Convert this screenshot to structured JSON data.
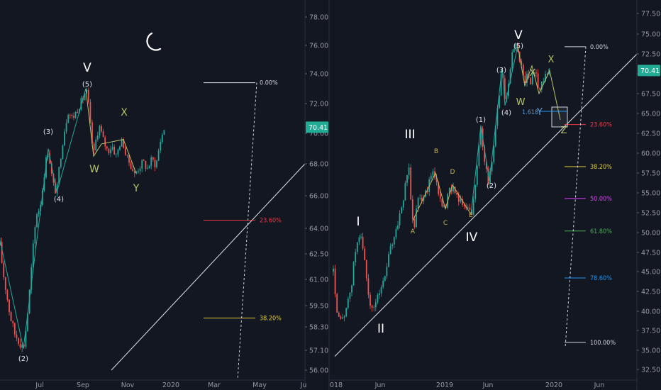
{
  "chart_data": [
    {
      "type": "candlestick",
      "title": "",
      "x_ticks": [
        "Jul",
        "Sep",
        "Nov",
        "2020",
        "Mar",
        "May",
        "Ju"
      ],
      "y_ticks": [
        "78.00",
        "76.00",
        "74.00",
        "72.00",
        "70.00",
        "68.00",
        "66.00",
        "64.00",
        "62.50",
        "61.00",
        "59.50",
        "58.30",
        "57.10",
        "56.00"
      ],
      "last_price": "70.41",
      "ylim": [
        56.0,
        78.0
      ],
      "price_path": [
        [
          0,
          63.0
        ],
        [
          4,
          61.5
        ],
        [
          8,
          60.5
        ],
        [
          14,
          59.0
        ],
        [
          20,
          58.0
        ],
        [
          27,
          57.6
        ],
        [
          33,
          57.2
        ],
        [
          36,
          58.0
        ],
        [
          40,
          59.5
        ],
        [
          44,
          61.5
        ],
        [
          48,
          63.5
        ],
        [
          52,
          65.0
        ],
        [
          56,
          65.2
        ],
        [
          60,
          66.5
        ],
        [
          64,
          68.0
        ],
        [
          68,
          69.0
        ],
        [
          72,
          67.5
        ],
        [
          76,
          66.5
        ],
        [
          80,
          66.2
        ],
        [
          84,
          68.0
        ],
        [
          90,
          70.0
        ],
        [
          96,
          71.5
        ],
        [
          102,
          71.0
        ],
        [
          108,
          71.5
        ],
        [
          113,
          72.0
        ],
        [
          118,
          72.4
        ],
        [
          121,
          73.0
        ],
        [
          124,
          72.3
        ],
        [
          128,
          70.2
        ],
        [
          132,
          68.5
        ],
        [
          136,
          69.8
        ],
        [
          140,
          70.5
        ],
        [
          146,
          69.5
        ],
        [
          152,
          68.8
        ],
        [
          158,
          69.2
        ],
        [
          164,
          68.5
        ],
        [
          170,
          69.5
        ],
        [
          174,
          69.3
        ],
        [
          178,
          68.4
        ],
        [
          184,
          68.0
        ],
        [
          190,
          67.3
        ],
        [
          196,
          67.8
        ],
        [
          202,
          68.1
        ],
        [
          208,
          67.7
        ],
        [
          214,
          68.3
        ],
        [
          220,
          67.9
        ],
        [
          226,
          69.5
        ],
        [
          232,
          70.4
        ]
      ],
      "waves": [
        {
          "label": "(2)",
          "x": 33,
          "y": 57.2
        },
        {
          "label": "(3)",
          "x": 68,
          "y": 69.0
        },
        {
          "label": "(4)",
          "x": 80,
          "y": 66.2
        },
        {
          "label": "(5)",
          "x": 121,
          "y": 73.0
        },
        {
          "label": "V",
          "x": 121,
          "y": 73.0
        },
        {
          "label": "W",
          "x": 132,
          "y": 68.3
        },
        {
          "label": "X",
          "x": 174,
          "y": 69.6
        },
        {
          "label": "Y",
          "x": 190,
          "y": 67.2
        }
      ],
      "trendline": [
        [
          157,
          56.0
        ],
        [
          430,
          68.0
        ]
      ],
      "fib_levels": [
        {
          "label": "0.00%",
          "price": 73.4,
          "color": "#d1d4dc"
        },
        {
          "label": "23.60%",
          "price": 64.5,
          "color": "#f23645"
        },
        {
          "label": "38.20%",
          "price": 58.8,
          "color": "#e5d037"
        }
      ],
      "icon": "moon-icon"
    },
    {
      "type": "candlestick",
      "title": "",
      "x_ticks": [
        "018",
        "Jun",
        "2019",
        "Jun",
        "2020",
        "Jun"
      ],
      "y_ticks": [
        "77.50",
        "75.00",
        "72.50",
        "70.00",
        "67.50",
        "65.00",
        "62.50",
        "60.00",
        "57.50",
        "55.00",
        "52.50",
        "50.00",
        "47.50",
        "45.00",
        "42.50",
        "40.00",
        "37.50",
        "35.00",
        "32.50"
      ],
      "last_price": "70.41",
      "ylim": [
        32.5,
        77.5
      ],
      "price_path": [
        [
          470,
          45.0
        ],
        [
          476,
          39.0
        ],
        [
          482,
          38.5
        ],
        [
          488,
          40.5
        ],
        [
          494,
          42.0
        ],
        [
          500,
          47.0
        ],
        [
          506,
          50.0
        ],
        [
          512,
          48.0
        ],
        [
          518,
          43.0
        ],
        [
          524,
          40.0
        ],
        [
          530,
          41.0
        ],
        [
          536,
          43.0
        ],
        [
          542,
          44.0
        ],
        [
          548,
          47.0
        ],
        [
          554,
          49.0
        ],
        [
          560,
          51.0
        ],
        [
          566,
          53.0
        ],
        [
          572,
          56.0
        ],
        [
          576,
          58.8
        ],
        [
          580,
          53.0
        ],
        [
          584,
          51.0
        ],
        [
          590,
          55.0
        ],
        [
          596,
          54.0
        ],
        [
          602,
          55.5
        ],
        [
          608,
          57.0
        ],
        [
          614,
          57.5
        ],
        [
          618,
          55.0
        ],
        [
          622,
          54.0
        ],
        [
          628,
          53.0
        ],
        [
          634,
          55.5
        ],
        [
          640,
          56.0
        ],
        [
          646,
          54.0
        ],
        [
          652,
          53.5
        ],
        [
          658,
          53.0
        ],
        [
          664,
          52.3
        ],
        [
          668,
          54.0
        ],
        [
          674,
          59.0
        ],
        [
          678,
          63.5
        ],
        [
          682,
          60.0
        ],
        [
          688,
          56.5
        ],
        [
          692,
          57.5
        ],
        [
          698,
          63.0
        ],
        [
          704,
          67.5
        ],
        [
          708,
          70.8
        ],
        [
          712,
          66.0
        ],
        [
          716,
          68.0
        ],
        [
          722,
          72.5
        ],
        [
          728,
          73.5
        ],
        [
          732,
          72.0
        ],
        [
          736,
          71.0
        ],
        [
          740,
          68.5
        ],
        [
          744,
          70.5
        ],
        [
          748,
          68.0
        ],
        [
          752,
          71.0
        ],
        [
          756,
          70.0
        ],
        [
          760,
          67.8
        ],
        [
          764,
          69.0
        ],
        [
          770,
          70.0
        ],
        [
          775,
          70.4
        ]
      ],
      "waves": [
        {
          "label": "I",
          "x": 506,
          "y": 50.0
        },
        {
          "label": "II",
          "x": 524,
          "y": 40.0
        },
        {
          "label": "III",
          "x": 576,
          "y": 58.8
        },
        {
          "label": "IV",
          "x": 664,
          "y": 52.3
        },
        {
          "label": "V",
          "x": 730,
          "y": 73.5
        },
        {
          "label": "(1)",
          "x": 678,
          "y": 63.5
        },
        {
          "label": "(2)",
          "x": 690,
          "y": 56.5
        },
        {
          "label": "(3)",
          "x": 708,
          "y": 70.8
        },
        {
          "label": "(4)",
          "x": 712,
          "y": 66.0
        },
        {
          "label": "(5)",
          "x": 730,
          "y": 73.5
        },
        {
          "label": "A",
          "x": 582,
          "y": 51.5
        },
        {
          "label": "B",
          "x": 614,
          "y": 57.5
        },
        {
          "label": "C",
          "x": 628,
          "y": 53.0
        },
        {
          "label": "D",
          "x": 638,
          "y": 56.0
        },
        {
          "label": "E",
          "x": 664,
          "y": 52.3
        },
        {
          "label": "W",
          "x": 738,
          "y": 68.5
        },
        {
          "label": "X",
          "x": 750,
          "y": 71.0
        },
        {
          "label": "Y",
          "x": 758,
          "y": 67.5
        },
        {
          "label": "X",
          "x": 775,
          "y": 70.4
        },
        {
          "label": "Z",
          "x": 795,
          "y": 64.0
        }
      ],
      "trendline": [
        [
          472,
          34.2
        ],
        [
          932,
          75.5
        ]
      ],
      "fib_ratio": "1.618",
      "fib_levels": [
        {
          "label": "0.00%",
          "price": 73.4,
          "color": "#d1d4dc"
        },
        {
          "label": "23.60%",
          "price": 63.6,
          "color": "#f23645"
        },
        {
          "label": "38.20%",
          "price": 58.3,
          "color": "#e5d037"
        },
        {
          "label": "50.00%",
          "price": 54.3,
          "color": "#e040fb"
        },
        {
          "label": "61.80%",
          "price": 50.2,
          "color": "#4caf50"
        },
        {
          "label": "78.60%",
          "price": 44.2,
          "color": "#2196f3"
        },
        {
          "label": "100.00%",
          "price": 36.0,
          "color": "#d1d4dc"
        }
      ]
    }
  ]
}
